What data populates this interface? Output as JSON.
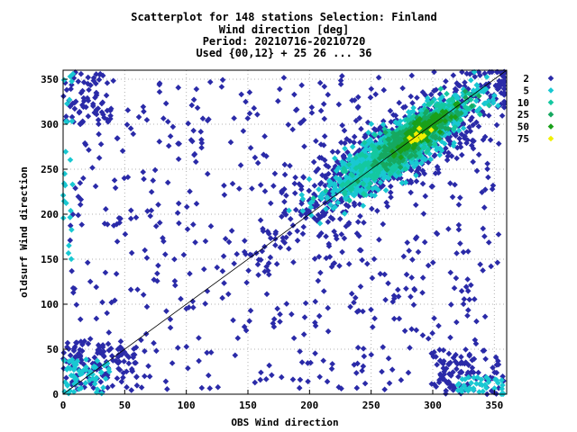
{
  "chart_data": {
    "type": "scatter",
    "title_lines": [
      "Scatterplot for  148 stations Selection: Finland",
      "Wind direction [deg]",
      "Period: 20210716-20210720",
      "Used {00,12} + 25 26 ... 36"
    ],
    "xlabel": "OBS Wind direction",
    "ylabel": "oldsurf Wind direction",
    "xlim": [
      0,
      360
    ],
    "ylim": [
      0,
      360
    ],
    "xticks": [
      0,
      50,
      100,
      150,
      200,
      250,
      300,
      350
    ],
    "yticks": [
      0,
      50,
      100,
      150,
      200,
      250,
      300,
      350
    ],
    "grid": true,
    "diagonal_line": true,
    "legend_position": "right",
    "density_legend": [
      {
        "label": "2",
        "color": "#2a2aa8"
      },
      {
        "label": "5",
        "color": "#19c8d2"
      },
      {
        "label": "10",
        "color": "#14c8a0"
      },
      {
        "label": "25",
        "color": "#16a860"
      },
      {
        "label": "50",
        "color": "#1aa01a"
      },
      {
        "label": "75",
        "color": "#f0f000"
      }
    ],
    "clusters": [
      {
        "level": 0,
        "x": [
          5,
          355
        ],
        "y": [
          5,
          355
        ],
        "n": 620,
        "mode": "uniform"
      },
      {
        "level": 0,
        "x_center": 270,
        "y_center": 270,
        "spread": 70,
        "n": 700,
        "mode": "diag"
      },
      {
        "level": 0,
        "x": [
          0,
          60
        ],
        "y": [
          0,
          60
        ],
        "n": 120,
        "mode": "uniform"
      },
      {
        "level": 0,
        "x": [
          300,
          358
        ],
        "y": [
          0,
          50
        ],
        "n": 90,
        "mode": "uniform"
      },
      {
        "level": 0,
        "x": [
          0,
          40
        ],
        "y": [
          300,
          358
        ],
        "n": 70,
        "mode": "uniform"
      },
      {
        "level": 1,
        "x_center": 275,
        "y_center": 275,
        "spread": 45,
        "n": 900,
        "mode": "diag"
      },
      {
        "level": 1,
        "x": [
          0,
          40
        ],
        "y": [
          0,
          40
        ],
        "n": 60,
        "mode": "uniform"
      },
      {
        "level": 1,
        "x": [
          320,
          358
        ],
        "y": [
          0,
          20
        ],
        "n": 40,
        "mode": "uniform"
      },
      {
        "level": 1,
        "x": [
          0,
          8
        ],
        "y": [
          150,
          358
        ],
        "n": 25,
        "mode": "uniform"
      },
      {
        "level": 2,
        "x_center": 280,
        "y_center": 282,
        "spread": 35,
        "n": 520,
        "mode": "diag"
      },
      {
        "level": 3,
        "x_center": 285,
        "y_center": 287,
        "spread": 25,
        "n": 320,
        "mode": "diag"
      },
      {
        "level": 4,
        "x_center": 290,
        "y_center": 292,
        "spread": 18,
        "n": 160,
        "mode": "diag"
      },
      {
        "level": 5,
        "x_center": 287,
        "y_center": 286,
        "spread": 9,
        "n": 14,
        "mode": "diag"
      }
    ]
  }
}
